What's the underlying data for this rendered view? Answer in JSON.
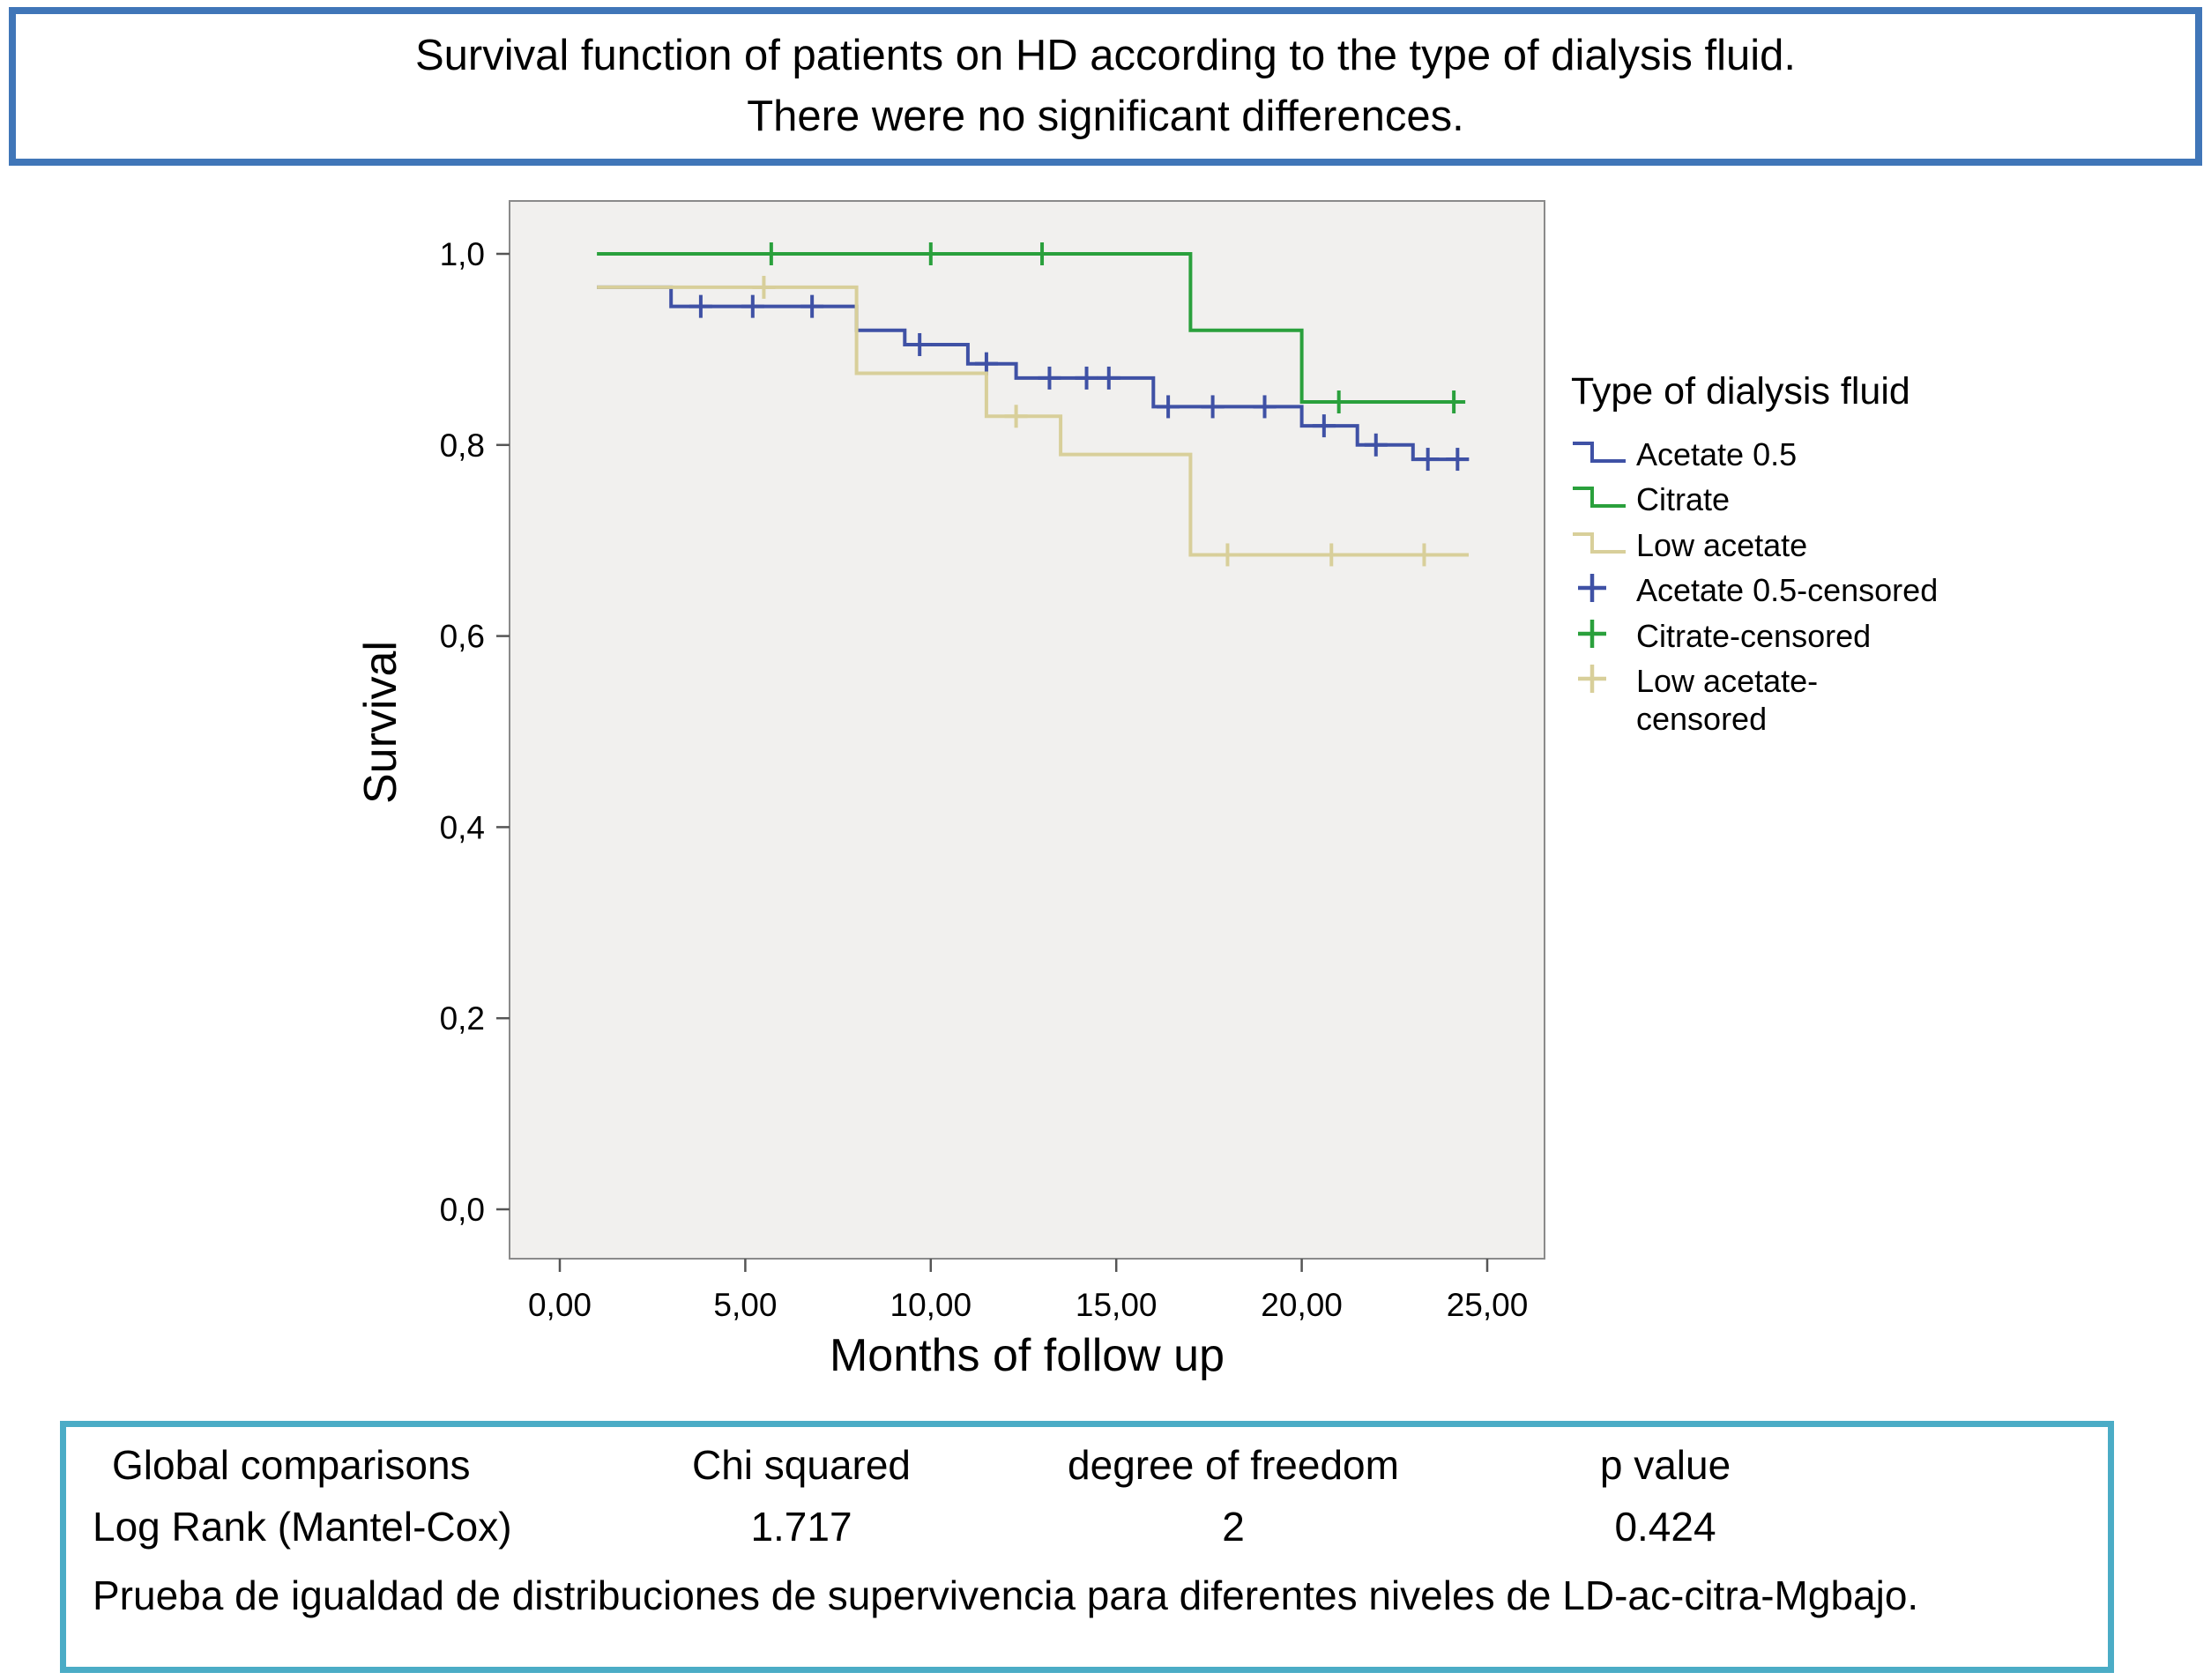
{
  "title": {
    "line1": "Survival function of patients on HD according to the type of dialysis fluid.",
    "line2": "There were no significant differences."
  },
  "chart_data": {
    "type": "line",
    "subtype": "kaplan-meier-step",
    "title": "",
    "xlabel": "Months of follow up",
    "ylabel": "Survival",
    "xlim": [
      0,
      25
    ],
    "ylim": [
      0.0,
      1.0
    ],
    "grid": false,
    "plot_bg": "#f1f0ee",
    "plot_border": "#8a8a8a",
    "xticks": [
      {
        "value": 0,
        "label": "0,00"
      },
      {
        "value": 5,
        "label": "5,00"
      },
      {
        "value": 10,
        "label": "10,00"
      },
      {
        "value": 15,
        "label": "15,00"
      },
      {
        "value": 20,
        "label": "20,00"
      },
      {
        "value": 25,
        "label": "25,00"
      }
    ],
    "yticks": [
      {
        "value": 0.0,
        "label": "0,0"
      },
      {
        "value": 0.2,
        "label": "0,2"
      },
      {
        "value": 0.4,
        "label": "0,4"
      },
      {
        "value": 0.6,
        "label": "0,6"
      },
      {
        "value": 0.8,
        "label": "0,8"
      },
      {
        "value": 1.0,
        "label": "1,0"
      }
    ],
    "series": [
      {
        "name": "Acetate 0.5",
        "color": "#3f51a5",
        "points": [
          [
            1,
            0.965
          ],
          [
            3,
            0.965
          ],
          [
            3,
            0.945
          ],
          [
            8,
            0.945
          ],
          [
            8,
            0.92
          ],
          [
            9.3,
            0.92
          ],
          [
            9.3,
            0.905
          ],
          [
            11,
            0.905
          ],
          [
            11,
            0.885
          ],
          [
            12.3,
            0.885
          ],
          [
            12.3,
            0.87
          ],
          [
            16,
            0.87
          ],
          [
            16,
            0.84
          ],
          [
            20,
            0.84
          ],
          [
            20,
            0.82
          ],
          [
            21.5,
            0.82
          ],
          [
            21.5,
            0.8
          ],
          [
            23,
            0.8
          ],
          [
            23,
            0.785
          ],
          [
            24.5,
            0.785
          ]
        ],
        "censored": [
          [
            3.8,
            0.945
          ],
          [
            5.2,
            0.945
          ],
          [
            6.8,
            0.945
          ],
          [
            9.7,
            0.905
          ],
          [
            11.5,
            0.885
          ],
          [
            13.2,
            0.87
          ],
          [
            14.2,
            0.87
          ],
          [
            14.8,
            0.87
          ],
          [
            16.4,
            0.84
          ],
          [
            17.6,
            0.84
          ],
          [
            19,
            0.84
          ],
          [
            20.6,
            0.82
          ],
          [
            22,
            0.8
          ],
          [
            23.4,
            0.785
          ],
          [
            24.2,
            0.785
          ]
        ]
      },
      {
        "name": "Citrate",
        "color": "#2aa03c",
        "points": [
          [
            1,
            1.0
          ],
          [
            17,
            1.0
          ],
          [
            17,
            0.92
          ],
          [
            20,
            0.92
          ],
          [
            20,
            0.845
          ],
          [
            24.3,
            0.845
          ]
        ],
        "censored": [
          [
            5.7,
            1.0
          ],
          [
            10,
            1.0
          ],
          [
            13,
            1.0
          ],
          [
            21,
            0.845
          ],
          [
            24.1,
            0.845
          ]
        ]
      },
      {
        "name": "Low acetate",
        "color": "#d8cf9a",
        "points": [
          [
            1,
            0.965
          ],
          [
            8,
            0.965
          ],
          [
            8,
            0.875
          ],
          [
            11.5,
            0.875
          ],
          [
            11.5,
            0.83
          ],
          [
            13.5,
            0.83
          ],
          [
            13.5,
            0.79
          ],
          [
            17,
            0.79
          ],
          [
            17,
            0.685
          ],
          [
            24.5,
            0.685
          ]
        ],
        "censored": [
          [
            5.5,
            0.965
          ],
          [
            12.3,
            0.83
          ],
          [
            18,
            0.685
          ],
          [
            20.8,
            0.685
          ],
          [
            23.3,
            0.685
          ]
        ]
      }
    ],
    "legend": {
      "title": "Type of dialysis fluid",
      "position": "right",
      "items": [
        {
          "label": "Acetate  0.5",
          "swatch": "step",
          "color": "#3f51a5"
        },
        {
          "label": "Citrate",
          "swatch": "step",
          "color": "#2aa03c"
        },
        {
          "label": "Low acetate",
          "swatch": "step",
          "color": "#d8cf9a"
        },
        {
          "label": "Acetate 0.5-censored",
          "swatch": "plus",
          "color": "#3f51a5"
        },
        {
          "label": "Citrate-censored",
          "swatch": "plus",
          "color": "#2aa03c"
        },
        {
          "label": "Low acetate-\ncensored",
          "swatch": "plus",
          "color": "#d8cf9a"
        }
      ]
    }
  },
  "stats": {
    "title": "Global comparisons",
    "columns": [
      "Chi squared",
      "degree of freedom",
      "p value"
    ],
    "row_label": "Log Rank (Mantel-Cox)",
    "row_values": [
      "1.717",
      "2",
      "0.424"
    ],
    "caption": "Prueba de igualdad de distribuciones de supervivencia para diferentes niveles de LD-ac-citra-Mgbajo.",
    "border_color": "#4bacc6"
  },
  "colors": {
    "title_border": "#4076b8"
  }
}
